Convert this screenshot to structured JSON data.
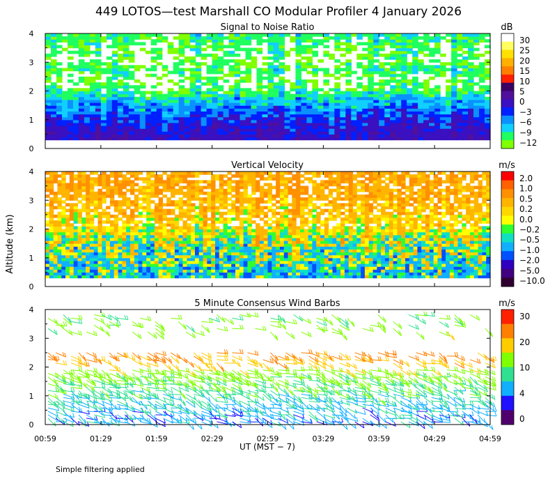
{
  "title": "449 LOTOS—test Marshall CO Modular Profiler  4 January 2026",
  "y_axis_label": "Altitude (km)",
  "x_axis_label": "UT  (MST − 7)",
  "footnote": "Simple filtering applied",
  "x_ticks": [
    "00:59",
    "01:29",
    "01:59",
    "02:29",
    "02:59",
    "03:29",
    "03:59",
    "04:29",
    "04:59"
  ],
  "colors": {
    "snr": [
      "#80ff00",
      "#20ff60",
      "#10d0ff",
      "#0a90ff",
      "#0020ff",
      "#3a10c0",
      "#50109c",
      "#3c0064",
      "#ff2000",
      "#ff8000",
      "#ffb000",
      "#ffe000",
      "#ffff60",
      "#ffffff"
    ],
    "vv": [
      "#ff0000",
      "#ff6000",
      "#ff9000",
      "#ffb400",
      "#ffd800",
      "#ffff00",
      "#30ff30",
      "#10e0c0",
      "#10b0ff",
      "#0050ff",
      "#3000c0",
      "#400080",
      "#300030"
    ],
    "wind": [
      "#50006c",
      "#2010ff",
      "#10b0ff",
      "#30e090",
      "#80ff00",
      "#ffcc00",
      "#ff8000",
      "#ff2000"
    ]
  },
  "chart_data": [
    {
      "type": "heatmap",
      "title": "Signal to Noise Ratio",
      "units": "dB",
      "x_range": [
        "00:59",
        "04:59"
      ],
      "ylim": [
        0,
        4
      ],
      "y_ticks": [
        "0",
        "1",
        "2",
        "3",
        "4"
      ],
      "colorbar_ticks": [
        "30",
        "25",
        "20",
        "15",
        "10",
        "5",
        "0",
        "−3",
        "−6",
        "−9",
        "−12"
      ],
      "levels": [
        -12,
        -9,
        -6,
        -3,
        0,
        5,
        10,
        15,
        20,
        25,
        30
      ],
      "profile": [
        [
          0.3,
          3
        ],
        [
          0.8,
          0
        ],
        [
          1.3,
          -4
        ],
        [
          1.7,
          -8
        ],
        [
          2.0,
          -12
        ],
        [
          2.4,
          -14
        ],
        [
          2.7,
          -11
        ],
        [
          3.0,
          -14
        ],
        [
          3.6,
          -12
        ],
        [
          4.0,
          -10
        ]
      ]
    },
    {
      "type": "heatmap",
      "title": "Vertical Velocity",
      "units": "m/s",
      "x_range": [
        "00:59",
        "04:59"
      ],
      "ylim": [
        0,
        4
      ],
      "y_ticks": [
        "0",
        "1",
        "2",
        "3",
        "4"
      ],
      "colorbar_ticks": [
        "2.0",
        "1.0",
        "0.5",
        "0.2",
        "0.0",
        "−0.2",
        "−0.5",
        "−1.0",
        "−2.0",
        "−5.0",
        "−10.0"
      ],
      "levels": [
        -10,
        -5,
        -2,
        -1,
        -0.5,
        -0.2,
        0,
        0.2,
        0.5,
        1,
        2
      ],
      "profile": [
        [
          0.3,
          -0.5
        ],
        [
          1.0,
          -0.2
        ],
        [
          1.8,
          0.2
        ],
        [
          2.5,
          0.6
        ],
        [
          3.2,
          0.9
        ],
        [
          4.0,
          1.0
        ]
      ]
    },
    {
      "type": "scatter",
      "title": "5 Minute Consensus Wind Barbs",
      "units": "m/s",
      "x_range": [
        "00:59",
        "04:59"
      ],
      "ylim": [
        0,
        4
      ],
      "y_ticks": [
        "0",
        "1",
        "2",
        "3",
        "4"
      ],
      "colorbar_ticks": [
        "30",
        "20",
        "10",
        "4",
        "0"
      ],
      "levels": [
        0,
        4,
        10,
        20,
        30
      ],
      "profile": [
        [
          0.2,
          5
        ],
        [
          0.6,
          6
        ],
        [
          1.0,
          8
        ],
        [
          1.4,
          10
        ],
        [
          1.8,
          12
        ],
        [
          2.2,
          19
        ],
        [
          2.5,
          22
        ],
        [
          3.3,
          12
        ],
        [
          3.7,
          11
        ]
      ]
    }
  ]
}
